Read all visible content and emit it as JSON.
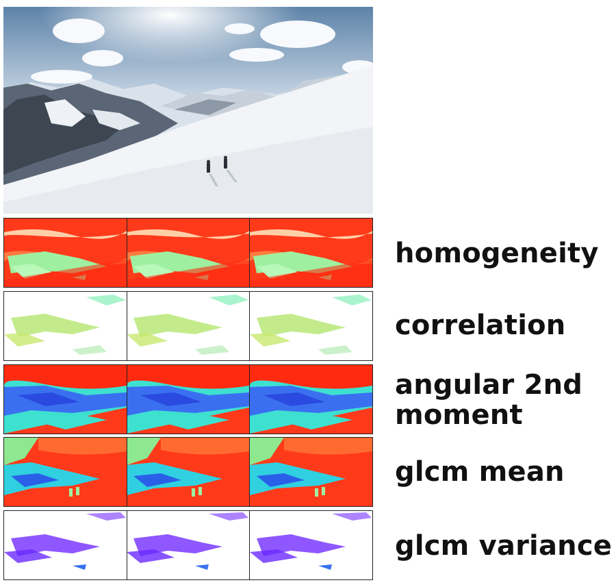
{
  "photo": {
    "description": "snow mountain hikers",
    "alt": ""
  },
  "strips": [
    {
      "id": "homogeneity",
      "label": "homogeneity",
      "colors": {
        "base": "#ff3a1a",
        "secondary": "#9ef0a0",
        "tertiary": "#ff6a30"
      }
    },
    {
      "id": "correlation",
      "label": "correlation",
      "colors": {
        "base": "#ffffff",
        "secondary": "#b8e878",
        "tertiary": "#86f0b8"
      }
    },
    {
      "id": "angular-2nd-moment",
      "label_line1": "angular 2nd",
      "label_line2": "moment",
      "colors": {
        "base": "#ff2a10",
        "secondary": "#3a70f0",
        "tertiary": "#3ee0d0"
      }
    },
    {
      "id": "glcm-mean",
      "label": "glcm mean",
      "colors": {
        "base": "#ff3a1a",
        "secondary": "#30d0e0",
        "tertiary": "#ff8050"
      }
    },
    {
      "id": "glcm-variance",
      "label": "glcm variance",
      "colors": {
        "base": "#ffffff",
        "secondary": "#7a3aff",
        "tertiary": "#9a60ff"
      }
    }
  ]
}
